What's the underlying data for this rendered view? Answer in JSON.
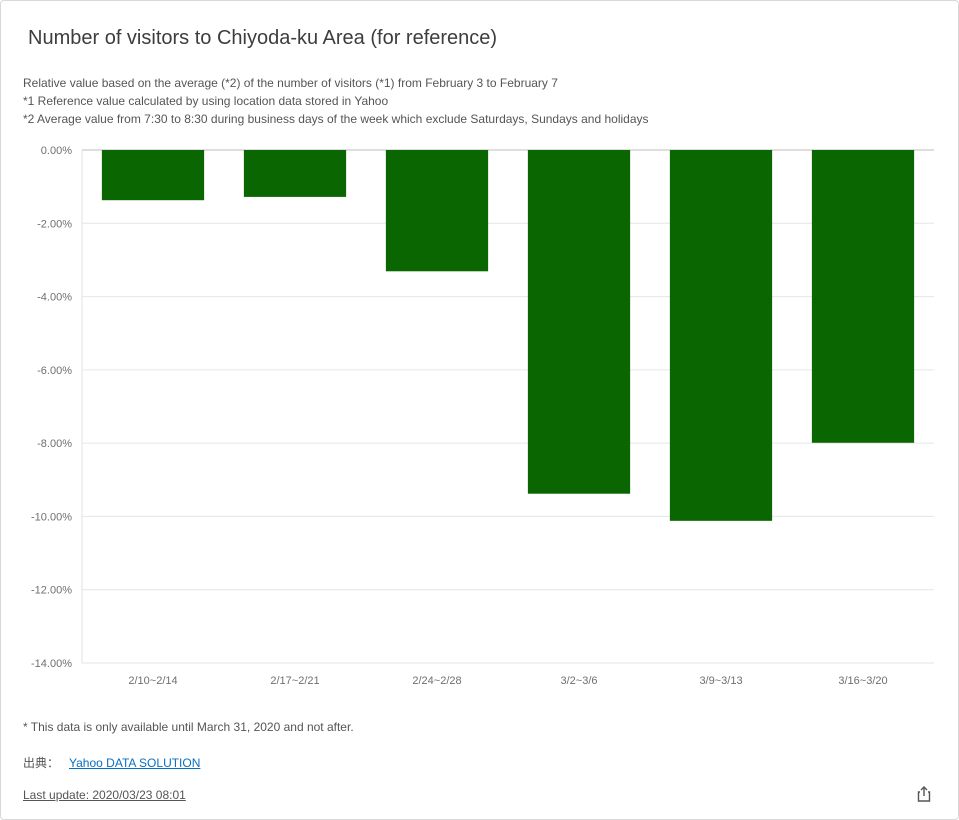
{
  "title": "Number of visitors to Chiyoda-ku Area (for reference)",
  "description": [
    "Relative value based on the average (*2) of the number of visitors (*1) from February 3 to February 7",
    "*1 Reference value calculated by using location data stored in Yahoo",
    "*2 Average value from 7:30 to 8:30 during business days of the week which exclude Saturdays, Sundays and holidays"
  ],
  "note": "* This data is only available until March 31, 2020 and not after.",
  "source": {
    "label": "出典：",
    "link_text": "Yahoo DATA SOLUTION"
  },
  "last_update": "Last update: 2020/03/23 08:01",
  "icons": {
    "share": "share-icon"
  },
  "colors": {
    "bar": "#0a6600",
    "grid": "#e6e6e6"
  },
  "chart_data": {
    "type": "bar",
    "title": "Number of visitors to Chiyoda-ku Area (for reference)",
    "categories": [
      "2/10~2/14",
      "2/17~2/21",
      "2/24~2/28",
      "3/2~3/6",
      "3/9~3/13",
      "3/16~3/20"
    ],
    "values": [
      -1.37,
      -1.28,
      -3.31,
      -9.38,
      -10.12,
      -7.99
    ],
    "ylim": [
      -14,
      0
    ],
    "yticks": [
      0,
      -2,
      -4,
      -6,
      -8,
      -10,
      -12,
      -14
    ],
    "ytick_labels": [
      "0.00%",
      "-2.00%",
      "-4.00%",
      "-6.00%",
      "-8.00%",
      "-10.00%",
      "-12.00%",
      "-14.00%"
    ],
    "xlabel": "",
    "ylabel": "",
    "grid": true,
    "legend": false
  }
}
